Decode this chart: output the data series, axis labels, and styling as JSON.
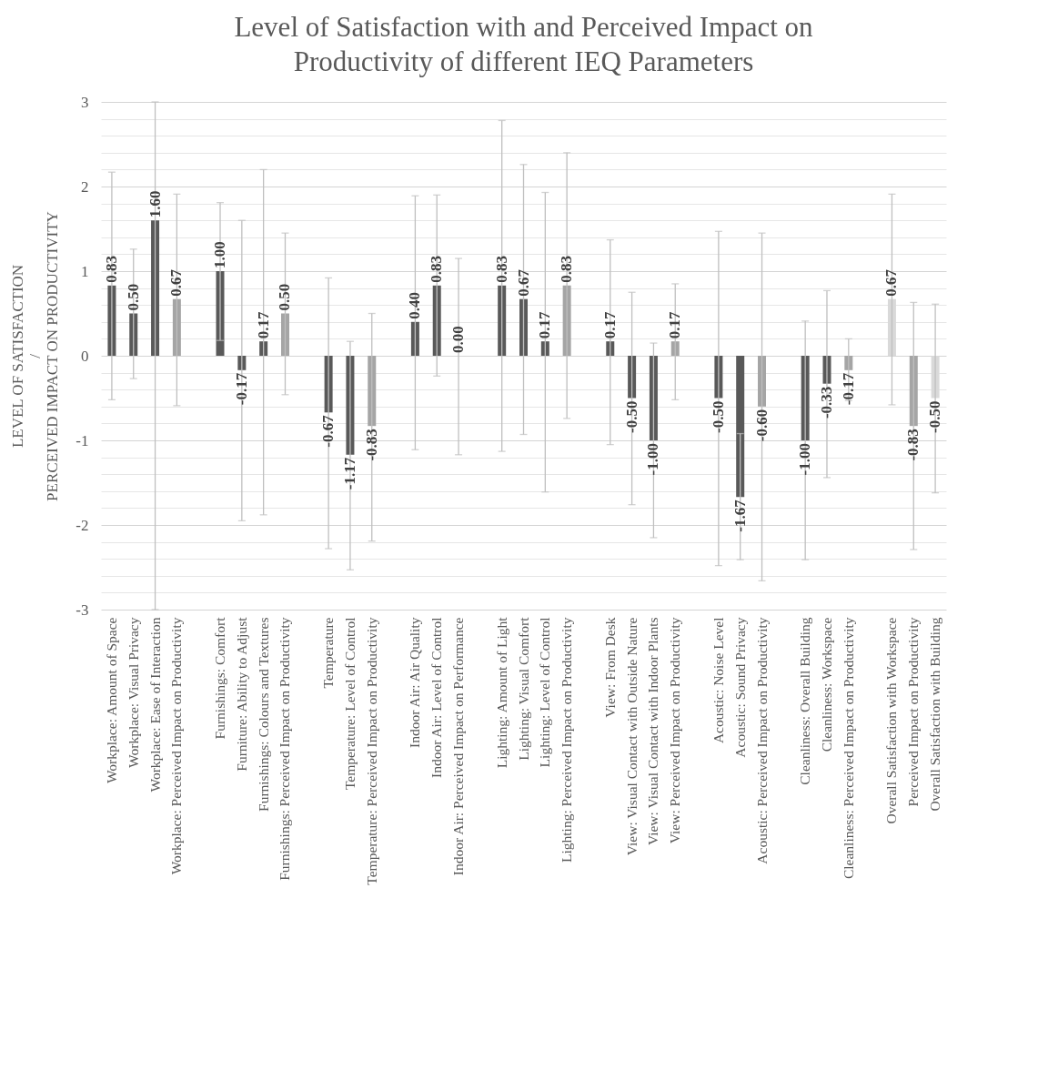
{
  "chart_data": {
    "type": "bar",
    "title": "Level of Satisfaction with and Perceived Impact on\nProductivity of different IEQ Parameters",
    "ylabel": "LEVEL OF SATISFACTION\n/\nPERCEIVED IMPACT ON PRODUCTIVITY",
    "categories": [
      "Workplace: Amount of Space",
      "Workplace: Visual Privacy",
      "Workplace: Ease of Interaction",
      "Workplace: Perceived Impact on Productivity",
      null,
      "Furnishings: Comfort",
      "Furniture: Ability to Adjust",
      "Furnishings: Colours and Textures",
      "Furnishings: Perceived Impact on Productivity",
      null,
      "Temperature",
      "Temperature: Level of Control",
      "Temperature: Perceived Impact on Productivity",
      null,
      "Indoor Air: Air Quality",
      "Indoor Air: Level of Control",
      "Indoor Air: Perceived Impact on Performance",
      null,
      "Lighting: Amount of Light",
      "Lighting: Visual Comfort",
      "Lighting: Level of Control",
      "Lighting: Perceived Impact on Productivity",
      null,
      "View: From Desk",
      "View: Visual Contact with Outside Nature",
      "View: Visual Contact with Indoor Plants",
      "View: Perceived Impact on Productivity",
      null,
      "Acoustic: Noise Level",
      "Acoustic: Sound Privacy",
      "Acoustic: Perceived Impact on Productivity",
      null,
      "Cleanliness: Overall Building",
      "Cleanliness: Workspace",
      "Cleanliness: Perceived Impact on Productivity",
      null,
      "Overall Satisfaction with Workspace",
      "Perceived Impact on Productivity",
      "Overall Satisfaction with Building"
    ],
    "values": [
      0.83,
      0.5,
      1.6,
      0.67,
      null,
      1.0,
      -0.17,
      0.17,
      0.5,
      null,
      -0.67,
      -1.17,
      -0.83,
      null,
      0.4,
      0.83,
      0.0,
      null,
      0.83,
      0.67,
      0.17,
      0.83,
      null,
      0.17,
      -0.5,
      -1.0,
      0.17,
      null,
      -0.5,
      -1.67,
      -0.6,
      null,
      -1.0,
      -0.33,
      -0.17,
      null,
      0.67,
      -0.83,
      -0.5
    ],
    "value_labels": [
      "0.83",
      "0.50",
      "1.60",
      "0.67",
      null,
      "1.00",
      "-0.17",
      "0.17",
      "0.50",
      null,
      "-0.67",
      "-1.17",
      "-0.83",
      null,
      "0.40",
      "0.83",
      "0.00",
      null,
      "0.83",
      "0.67",
      "0.17",
      "0.83",
      null,
      "0.17",
      "-0.50",
      "-1.00",
      "0.17",
      null,
      "-0.50",
      "-1.67",
      "-0.60",
      null,
      "-1.00",
      "-0.33",
      "-0.17",
      null,
      "0.67",
      "-0.83",
      "-0.50"
    ],
    "colors": [
      "#595959",
      "#595959",
      "#595959",
      "#a5a5a5",
      null,
      "#595959",
      "#595959",
      "#595959",
      "#a5a5a5",
      null,
      "#595959",
      "#595959",
      "#a5a5a5",
      null,
      "#595959",
      "#595959",
      "#a5a5a5",
      null,
      "#595959",
      "#595959",
      "#595959",
      "#a5a5a5",
      null,
      "#595959",
      "#595959",
      "#595959",
      "#a5a5a5",
      null,
      "#595959",
      "#595959",
      "#a5a5a5",
      null,
      "#595959",
      "#595959",
      "#a5a5a5",
      null,
      "#d9d9d9",
      "#a5a5a5",
      "#d9d9d9"
    ],
    "errors": [
      [
        -0.52,
        2.17
      ],
      [
        -0.27,
        1.26
      ],
      [
        -3,
        3
      ],
      [
        -0.59,
        1.91
      ],
      null,
      [
        0.18,
        1.81
      ],
      [
        -1.95,
        1.6
      ],
      [
        -1.88,
        2.2
      ],
      [
        -0.46,
        1.45
      ],
      null,
      [
        -2.28,
        0.92
      ],
      [
        -2.53,
        0.17
      ],
      [
        -2.19,
        0.5
      ],
      null,
      [
        -1.11,
        1.89
      ],
      [
        -0.24,
        1.9
      ],
      [
        -1.17,
        1.15
      ],
      null,
      [
        -1.13,
        2.78
      ],
      [
        -0.93,
        2.26
      ],
      [
        -1.61,
        1.93
      ],
      [
        -0.74,
        2.4
      ],
      null,
      [
        -1.05,
        1.37
      ],
      [
        -1.76,
        0.75
      ],
      [
        -2.15,
        0.15
      ],
      [
        -0.52,
        0.85
      ],
      null,
      [
        -2.48,
        1.47
      ],
      [
        -2.41,
        -0.92
      ],
      [
        -2.66,
        1.45
      ],
      null,
      [
        -2.41,
        0.41
      ],
      [
        -1.44,
        0.77
      ],
      [
        -0.53,
        0.2
      ],
      null,
      [
        -0.58,
        1.91
      ],
      [
        -2.29,
        0.63
      ],
      [
        -1.62,
        0.61
      ]
    ],
    "ylim": [
      -3,
      3
    ],
    "yticks": [
      -3,
      {
        "value": -2.8,
        "label": null
      },
      {
        "value": -2.6,
        "label": null
      },
      {
        "value": -2.4,
        "label": null
      },
      {
        "value": -2.2,
        "label": null
      },
      -2,
      {
        "value": -1.8,
        "label": null
      },
      {
        "value": -1.6,
        "label": null
      },
      {
        "value": -1.4,
        "label": null
      },
      {
        "value": -1.2,
        "label": null
      },
      -1,
      {
        "value": -0.8,
        "label": null
      },
      {
        "value": -0.6,
        "label": null
      },
      {
        "value": -0.4,
        "label": null
      },
      {
        "value": -0.2,
        "label": null
      },
      0,
      {
        "value": 0.2,
        "label": null
      },
      {
        "value": 0.4,
        "label": null
      },
      {
        "value": 0.6,
        "label": null
      },
      {
        "value": 0.8,
        "label": null
      },
      1,
      {
        "value": 1.2,
        "label": null
      },
      {
        "value": 1.4,
        "label": null
      },
      {
        "value": 1.6,
        "label": null
      },
      {
        "value": 1.8,
        "label": null
      },
      2,
      {
        "value": 2.2,
        "label": null
      },
      {
        "value": 2.4,
        "label": null
      },
      {
        "value": 2.6,
        "label": null
      },
      {
        "value": 2.8,
        "label": null
      },
      3
    ],
    "grid": "y"
  }
}
